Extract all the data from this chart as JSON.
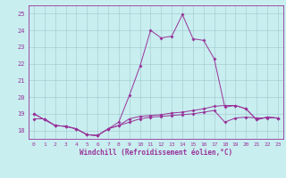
{
  "xlabel": "Windchill (Refroidissement éolien,°C)",
  "background_color": "#c8eef0",
  "grid_color": "#a0c8cc",
  "line_color": "#993399",
  "spine_color": "#993399",
  "xlim": [
    -0.5,
    23.5
  ],
  "ylim": [
    17.5,
    25.5
  ],
  "xticks": [
    0,
    1,
    2,
    3,
    4,
    5,
    6,
    7,
    8,
    9,
    10,
    11,
    12,
    13,
    14,
    15,
    16,
    17,
    18,
    19,
    20,
    21,
    22,
    23
  ],
  "yticks": [
    18,
    19,
    20,
    21,
    22,
    23,
    24,
    25
  ],
  "line1_x": [
    0,
    1,
    2,
    3,
    4,
    5,
    6,
    7,
    8,
    9,
    10,
    11,
    12,
    13,
    14,
    15,
    16,
    17,
    18,
    19,
    20,
    21,
    22,
    23
  ],
  "line1_y": [
    19.0,
    18.65,
    18.3,
    18.25,
    18.1,
    17.75,
    17.7,
    18.1,
    18.3,
    18.7,
    18.85,
    18.9,
    18.95,
    19.05,
    19.1,
    19.2,
    19.3,
    19.45,
    19.5,
    19.5,
    19.3,
    18.65,
    18.8,
    18.75
  ],
  "line2_x": [
    0,
    1,
    2,
    3,
    4,
    5,
    6,
    7,
    8,
    9,
    10,
    11,
    12,
    13,
    14,
    15,
    16,
    17,
    18,
    19,
    20,
    21,
    22,
    23
  ],
  "line2_y": [
    19.0,
    18.65,
    18.3,
    18.25,
    18.1,
    17.75,
    17.7,
    18.1,
    18.5,
    20.1,
    21.85,
    24.0,
    23.55,
    23.65,
    24.95,
    23.5,
    23.4,
    22.3,
    19.4,
    19.5,
    19.3,
    18.65,
    18.8,
    18.75
  ],
  "line3_x": [
    0,
    1,
    2,
    3,
    4,
    5,
    6,
    7,
    8,
    9,
    10,
    11,
    12,
    13,
    14,
    15,
    16,
    17,
    18,
    19,
    20,
    21,
    22,
    23
  ],
  "line3_y": [
    18.7,
    18.7,
    18.3,
    18.25,
    18.1,
    17.75,
    17.7,
    18.1,
    18.3,
    18.5,
    18.7,
    18.8,
    18.85,
    18.9,
    18.95,
    19.0,
    19.1,
    19.2,
    18.5,
    18.75,
    18.8,
    18.75,
    18.75,
    18.75
  ]
}
